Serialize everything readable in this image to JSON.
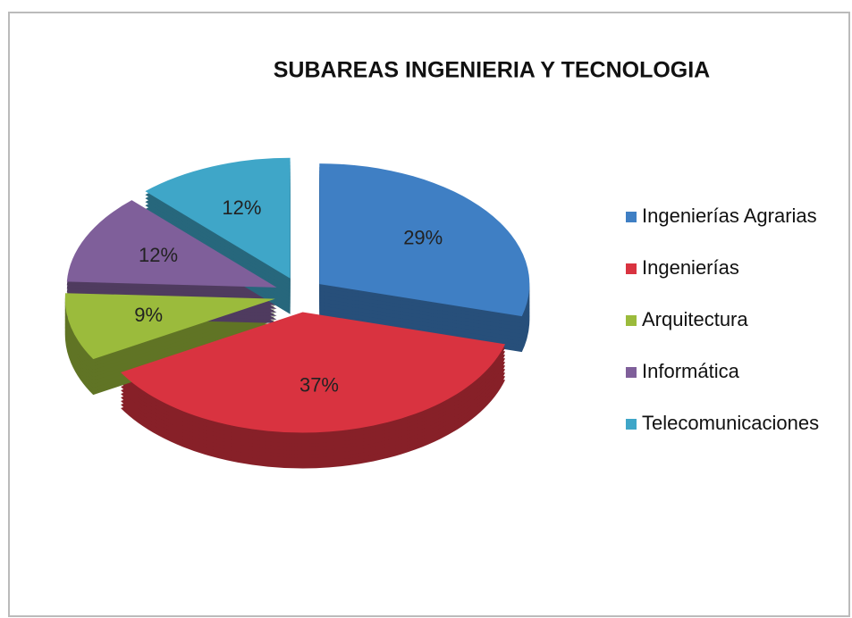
{
  "chart_data": {
    "type": "pie",
    "title": "SUBAREAS INGENIERIA Y TECNOLOGIA",
    "categories": [
      "Ingenierías Agrarias",
      "Ingenierías",
      "Arquitectura",
      "Informática",
      "Telecomunicaciones"
    ],
    "values": [
      29,
      37,
      9,
      12,
      12
    ],
    "value_labels": [
      "29%",
      "37%",
      "9%",
      "12%",
      "12%"
    ],
    "colors": [
      "#3f7fc4",
      "#d93340",
      "#9bbb3c",
      "#7f5f9a",
      "#3fa6c8"
    ],
    "legend": "right"
  }
}
